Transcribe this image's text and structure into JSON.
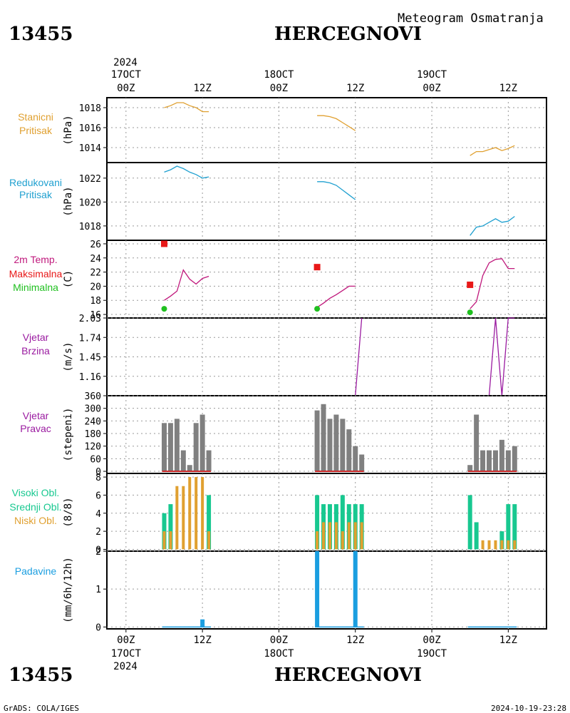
{
  "header": {
    "station_id": "13455",
    "station_name": "HERCEGNOVI",
    "product": "Meteogram Osmatranja"
  },
  "footer": {
    "station_id": "13455",
    "station_name": "HERCEGNOVI",
    "credit": "GrADS: COLA/IGES",
    "timestamp": "2024-10-19-23:28"
  },
  "time_axis": {
    "year": "2024",
    "top_dates": [
      "17OCT",
      "18OCT",
      "19OCT"
    ],
    "top_hours": [
      "00Z",
      "12Z",
      "00Z",
      "12Z",
      "00Z",
      "12Z"
    ],
    "bottom_hours": [
      "00Z",
      "12Z",
      "00Z",
      "12Z",
      "00Z",
      "12Z"
    ],
    "bottom_dates": [
      "17OCT",
      "18OCT",
      "19OCT"
    ],
    "x_range_hours": [
      -3,
      66
    ],
    "x_unit": "hours since 17OCT2024 00Z"
  },
  "colors": {
    "station_pressure": "#e0a030",
    "reduced_pressure": "#1fa0d0",
    "temperature": "#c0187c",
    "tmax": "#e81818",
    "tmin": "#20c020",
    "wind": "#9a1aa0",
    "dir_bar": "#808080",
    "dir_calm": "#c82828",
    "cloud_high": "#18c890",
    "cloud_low": "#e0a030",
    "precip": "#1a9ee0"
  },
  "chart_data": [
    {
      "type": "line",
      "panel": "station_pressure",
      "label_lines": [
        "Stanicni",
        "Pritisak"
      ],
      "ylabel": "(hPa)",
      "ylim": [
        1012.5,
        1019.0
      ],
      "yticks": [
        1014,
        1016,
        1018
      ],
      "series": [
        {
          "x": [
            6,
            7,
            8,
            9,
            10,
            11,
            12,
            13
          ],
          "y": [
            1018.0,
            1018.2,
            1018.5,
            1018.5,
            1018.2,
            1018.0,
            1017.6,
            1017.6
          ]
        },
        {
          "x": [
            30,
            31,
            32,
            33,
            34,
            35,
            36
          ],
          "y": [
            1017.2,
            1017.2,
            1017.1,
            1016.9,
            1016.5,
            1016.1,
            1015.7
          ]
        },
        {
          "x": [
            54,
            55,
            56,
            57,
            58,
            59,
            60,
            61
          ],
          "y": [
            1013.2,
            1013.6,
            1013.6,
            1013.8,
            1014.0,
            1013.7,
            1013.9,
            1014.2
          ]
        }
      ]
    },
    {
      "type": "line",
      "panel": "reduced_pressure",
      "label_lines": [
        "Redukovani",
        "Pritisak"
      ],
      "ylabel": "(hPa)",
      "ylim": [
        1016.8,
        1023.3
      ],
      "yticks": [
        1018,
        1020,
        1022
      ],
      "series": [
        {
          "x": [
            6,
            7,
            8,
            9,
            10,
            11,
            12,
            13
          ],
          "y": [
            1022.5,
            1022.7,
            1023.0,
            1022.8,
            1022.5,
            1022.3,
            1022.0,
            1022.1
          ]
        },
        {
          "x": [
            30,
            31,
            32,
            33,
            34,
            35,
            36
          ],
          "y": [
            1021.7,
            1021.7,
            1021.6,
            1021.4,
            1021.0,
            1020.6,
            1020.2
          ]
        },
        {
          "x": [
            54,
            55,
            56,
            57,
            58,
            59,
            60,
            61
          ],
          "y": [
            1017.2,
            1017.9,
            1018.0,
            1018.3,
            1018.6,
            1018.3,
            1018.4,
            1018.8
          ]
        }
      ]
    },
    {
      "type": "line",
      "panel": "temperature",
      "label_lines": [
        "2m Temp.",
        "Maksimalna",
        "Minimalna"
      ],
      "ylabel": "(C)",
      "ylim": [
        15.5,
        26.5
      ],
      "yticks": [
        16,
        18,
        20,
        22,
        24,
        26
      ],
      "series": [
        {
          "name": "2m Temp.",
          "x": [
            6,
            7,
            8,
            9,
            10,
            11,
            12,
            13
          ],
          "y": [
            18.0,
            18.6,
            19.3,
            22.3,
            21.0,
            20.3,
            21.1,
            21.4
          ]
        },
        {
          "name": "2m Temp.",
          "x": [
            30,
            31,
            32,
            33,
            34,
            35,
            36
          ],
          "y": [
            17.0,
            17.6,
            18.3,
            18.8,
            19.4,
            20.0,
            20.0
          ]
        },
        {
          "name": "2m Temp.",
          "x": [
            54,
            55,
            56,
            57,
            58,
            59,
            60,
            61
          ],
          "y": [
            16.8,
            17.8,
            21.5,
            23.3,
            23.8,
            23.9,
            22.5,
            22.5
          ]
        }
      ],
      "points": [
        {
          "name": "Maksimalna",
          "x": [
            6,
            30,
            54
          ],
          "y": [
            26.0,
            22.7,
            20.2
          ]
        },
        {
          "name": "Minimalna",
          "x": [
            6,
            30,
            54
          ],
          "y": [
            16.8,
            16.8,
            16.3
          ]
        }
      ]
    },
    {
      "type": "line",
      "panel": "wind_speed",
      "label_lines": [
        "Vjetar",
        "Brzina"
      ],
      "ylabel": "(m/s)",
      "ylim": [
        0.87,
        2.03
      ],
      "yticks": [
        1.16,
        1.45,
        1.74,
        2.03
      ],
      "series": [
        {
          "x": [
            6,
            13
          ],
          "y": [
            0.87,
            0.87
          ]
        },
        {
          "x": [
            30,
            36,
            37
          ],
          "y": [
            0.87,
            0.87,
            2.03
          ]
        },
        {
          "x": [
            54,
            57,
            58,
            59,
            60,
            61
          ],
          "y": [
            0.87,
            0.87,
            2.03,
            0.87,
            2.03,
            2.03
          ]
        }
      ]
    },
    {
      "type": "bar",
      "panel": "wind_direction",
      "label_lines": [
        "Vjetar",
        "Pravac"
      ],
      "ylabel": "(stepeni)",
      "ylim": [
        -10,
        360
      ],
      "yticks": [
        0,
        60,
        120,
        180,
        240,
        300,
        360
      ],
      "series": [
        {
          "x": [
            6,
            7,
            8,
            9,
            10,
            11,
            12,
            13
          ],
          "y": [
            230,
            230,
            250,
            100,
            30,
            230,
            270,
            100
          ]
        },
        {
          "x": [
            30,
            31,
            32,
            33,
            34,
            35,
            36,
            37
          ],
          "y": [
            290,
            320,
            250,
            270,
            250,
            200,
            120,
            80
          ]
        },
        {
          "x": [
            54,
            55,
            56,
            57,
            58,
            59,
            60,
            61
          ],
          "y": [
            30,
            270,
            100,
            100,
            100,
            150,
            100,
            120
          ]
        }
      ]
    },
    {
      "type": "bar",
      "panel": "cloud_cover",
      "label_lines": [
        "Visoki Obl.",
        "Srednji Obl.",
        "Niski Obl."
      ],
      "ylabel": "(8/8)",
      "ylim": [
        -0.2,
        8.4
      ],
      "yticks": [
        0,
        2,
        4,
        6,
        8
      ],
      "series": [
        {
          "name": "Visoki Obl.",
          "x": [
            6,
            7,
            8,
            9,
            10,
            11,
            12,
            13,
            30,
            31,
            32,
            33,
            34,
            35,
            36,
            37,
            54,
            55,
            56,
            57,
            58,
            59,
            60,
            61
          ],
          "y": [
            4,
            5,
            0,
            0,
            0,
            0,
            0,
            6,
            6,
            5,
            5,
            5,
            6,
            5,
            5,
            5,
            6,
            3,
            0,
            0,
            0,
            2,
            5,
            5
          ]
        },
        {
          "name": "Niski Obl.",
          "x": [
            6,
            7,
            8,
            9,
            10,
            11,
            12,
            13,
            30,
            31,
            32,
            33,
            34,
            35,
            36,
            37,
            54,
            55,
            56,
            57,
            58,
            59,
            60,
            61
          ],
          "y": [
            2,
            2,
            7,
            7,
            8,
            8,
            8,
            2,
            2,
            3,
            3,
            3,
            2,
            3,
            3,
            3,
            0,
            0,
            1,
            1,
            1,
            1,
            1,
            1
          ]
        }
      ]
    },
    {
      "type": "bar",
      "panel": "precipitation",
      "label_lines": [
        "Padavine"
      ],
      "ylabel": "(mm/6h/12h)",
      "ylim": [
        -0.05,
        2.0
      ],
      "yticks": [
        0,
        1,
        2
      ],
      "series": [
        {
          "x": [
            6,
            7,
            8,
            9,
            10,
            11,
            12,
            13
          ],
          "y": [
            0,
            0,
            0,
            0,
            0,
            0,
            0.2,
            0
          ]
        },
        {
          "x": [
            30,
            31,
            32,
            33,
            34,
            35,
            36,
            37
          ],
          "y": [
            2,
            0,
            0,
            0,
            0,
            0,
            2,
            0
          ]
        },
        {
          "x": [
            54,
            55,
            56,
            57,
            58,
            59,
            60,
            61
          ],
          "y": [
            0,
            0,
            0,
            0,
            0,
            0,
            0,
            0
          ]
        }
      ]
    }
  ]
}
